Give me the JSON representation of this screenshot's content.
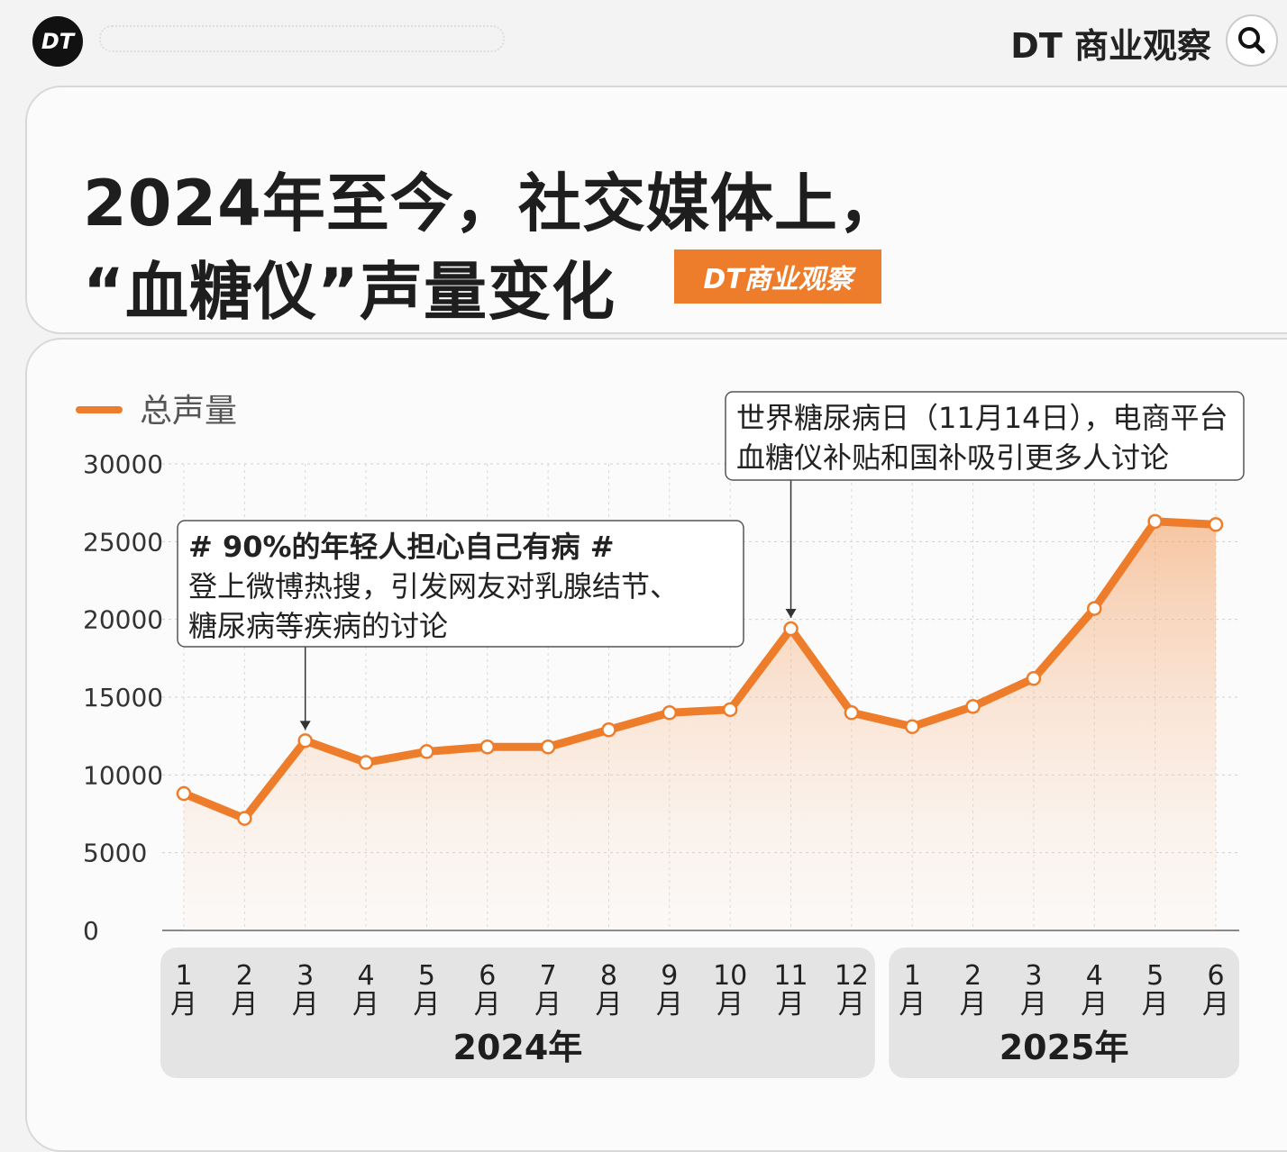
{
  "header": {
    "logo": "DT",
    "brand": "DT 商业观察"
  },
  "title_lines": [
    "2024年至今，社交媒体上，",
    "“血糖仪”声量变化"
  ],
  "badge": "DT商业观察",
  "chart_data": {
    "type": "line",
    "categories": [
      "1月",
      "2月",
      "3月",
      "4月",
      "5月",
      "6月",
      "7月",
      "8月",
      "9月",
      "10月",
      "11月",
      "12月",
      "1月",
      "2月",
      "3月",
      "4月",
      "5月",
      "6月"
    ],
    "x_groups": [
      "2024年",
      "2025年"
    ],
    "series": [
      {
        "name": "总声量",
        "color": "#ee7d2b",
        "values": [
          8800,
          7200,
          12200,
          10800,
          11500,
          11800,
          11800,
          12900,
          14000,
          14200,
          19400,
          14000,
          13100,
          14400,
          16200,
          20700,
          26300,
          26100
        ]
      }
    ],
    "ylim": [
      0,
      30000
    ],
    "yticks": [
      0,
      5000,
      10000,
      15000,
      20000,
      25000,
      30000
    ],
    "grid": true,
    "annotations": [
      {
        "lines": [
          "# 90%的年轻人担心自己有病 #",
          "登上微博热搜，引发网友对乳腺结节、",
          "糖尿病等疾病的讨论"
        ]
      },
      {
        "lines": [
          "世界糖尿病日（11月14日），电商平台",
          "血糖仪补贴和国补吸引更多人讨论"
        ]
      }
    ]
  }
}
